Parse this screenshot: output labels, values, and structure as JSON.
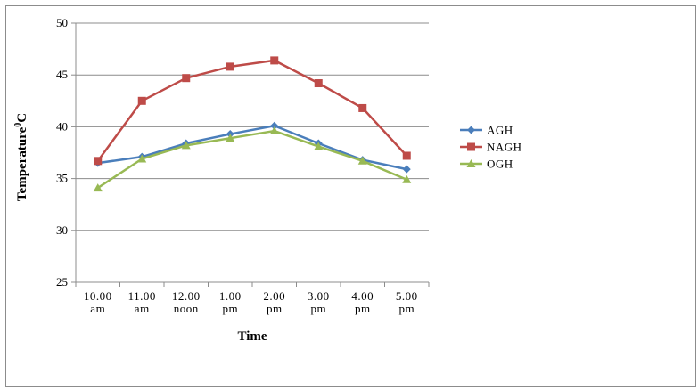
{
  "chart_data": {
    "type": "line",
    "categories": [
      [
        "10.00",
        "am"
      ],
      [
        "11.00",
        "am"
      ],
      [
        "12.00",
        "noon"
      ],
      [
        "1.00",
        "pm"
      ],
      [
        "2.00",
        "pm"
      ],
      [
        "3.00",
        "pm"
      ],
      [
        "4.00",
        "pm"
      ],
      [
        "5.00",
        "pm"
      ]
    ],
    "series": [
      {
        "name": "AGH",
        "color": "#4a7ebb",
        "marker": "diamond",
        "values": [
          36.5,
          37.1,
          38.4,
          39.3,
          40.1,
          38.4,
          36.8,
          35.9
        ]
      },
      {
        "name": "NAGH",
        "color": "#be4b48",
        "marker": "square",
        "values": [
          36.7,
          42.5,
          44.7,
          45.8,
          46.4,
          44.2,
          41.8,
          37.2
        ]
      },
      {
        "name": "OGH",
        "color": "#98b954",
        "marker": "triangle",
        "values": [
          34.1,
          36.9,
          38.2,
          38.9,
          39.6,
          38.1,
          36.7,
          34.9
        ]
      }
    ],
    "xlabel": "Time",
    "ylabel": "Temperature",
    "ylabel_sup": "0",
    "ylabel_suffix": "C",
    "ylim": [
      25,
      50
    ],
    "yticks": [
      25,
      30,
      35,
      40,
      45,
      50
    ],
    "grid": true,
    "legend_position": "right"
  }
}
